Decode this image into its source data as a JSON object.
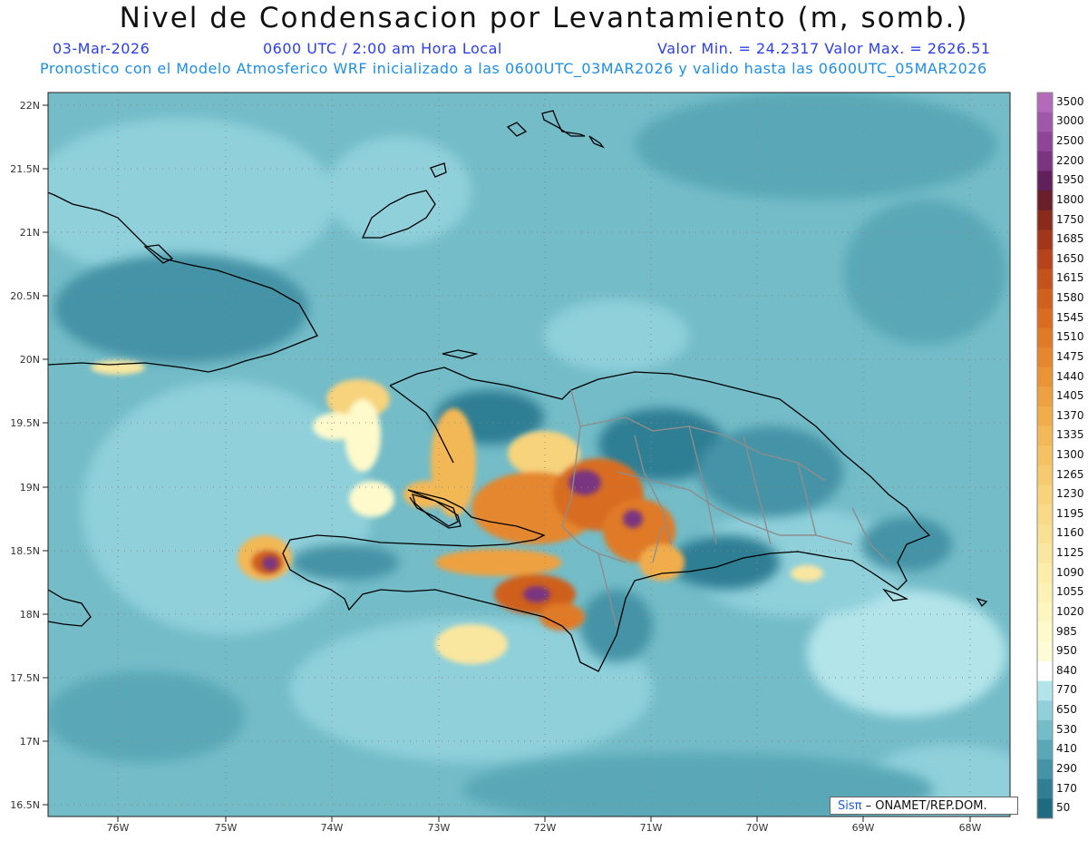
{
  "header": {
    "title": "Nivel de Condensacion por Levantamiento (m, somb.)",
    "date": "03-Mar-2026",
    "time": "0600 UTC / 2:00 am Hora Local",
    "min_max": "Valor Min. = 24.2317   Valor Max. = 2626.51",
    "description": "Pronostico con el Modelo Atmosferico WRF inicializado a las 0600UTC_03MAR2026 y valido hasta las  0600UTC_05MAR2026"
  },
  "map": {
    "lat_labels": [
      "22N",
      "21.5N",
      "21N",
      "20.5N",
      "20N",
      "19.5N",
      "19N",
      "18.5N",
      "18N",
      "17.5N",
      "17N",
      "16.5N"
    ],
    "lon_labels": [
      "76W",
      "75W",
      "74W",
      "73W",
      "72W",
      "71W",
      "70W",
      "69W",
      "68W"
    ]
  },
  "colorbar": {
    "labels": [
      "3500",
      "3000",
      "2500",
      "2200",
      "1950",
      "1800",
      "1750",
      "1685",
      "1650",
      "1615",
      "1580",
      "1545",
      "1510",
      "1475",
      "1440",
      "1405",
      "1370",
      "1335",
      "1300",
      "1265",
      "1230",
      "1195",
      "1160",
      "1125",
      "1090",
      "1055",
      "1020",
      "985",
      "950",
      "840",
      "770",
      "650",
      "530",
      "410",
      "290",
      "170",
      "50"
    ],
    "colors": [
      "#b36ab8",
      "#a058a8",
      "#8e4596",
      "#7a3580",
      "#60205a",
      "#6b1f2a",
      "#8a2a1c",
      "#a2361a",
      "#b5441c",
      "#c4521d",
      "#cf601e",
      "#d86d22",
      "#e07a26",
      "#e5872d",
      "#ea9436",
      "#eea140",
      "#f1ad4b",
      "#f3b857",
      "#f5c263",
      "#f6cb6f",
      "#f7d37c",
      "#f8da88",
      "#f9e194",
      "#fae79f",
      "#fbedaa",
      "#fcf2b5",
      "#fdf6c0",
      "#fefacb",
      "#fefcd6",
      "#ffffff",
      "#b2e4ea",
      "#8fd0da",
      "#73bcc8",
      "#5aa8b7",
      "#4493a6",
      "#2f7e94",
      "#1e6a80"
    ]
  },
  "credit": {
    "sis": "Sis",
    "pi": "π",
    "rest": "– ONAMET/REP.DOM."
  }
}
